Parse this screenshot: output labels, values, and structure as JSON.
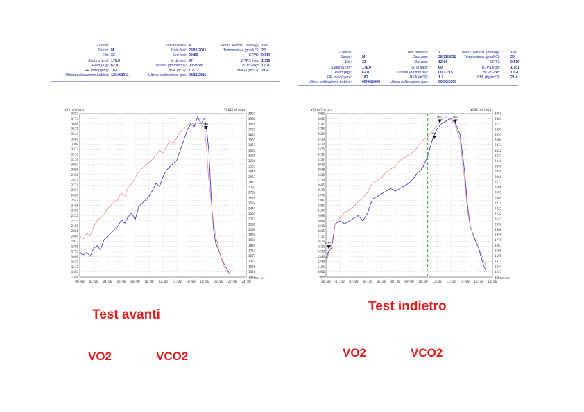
{
  "colors": {
    "vo2": "#2b2bc8",
    "vco2": "#e88a8a",
    "grid": "#c8c8c8",
    "marker": "#1fa01f",
    "caption": "#e01b1b",
    "header": "#1a2a9c"
  },
  "left": {
    "header": {
      "col1": [
        {
          "label": "Codice:",
          "value": "1"
        },
        {
          "label": "Sesso:",
          "value": "M"
        },
        {
          "label": "Età:",
          "value": "33"
        },
        {
          "label": "Statura (cm):",
          "value": "170.0"
        },
        {
          "label": "Peso (Kg):",
          "value": "62.0"
        },
        {
          "label": "HR max (bpm):",
          "value": "187"
        },
        {
          "label": "Ultima calibrazione turbina:",
          "value": "12/10/2011"
        }
      ],
      "col2": [
        {
          "label": "Test numero:",
          "value": "4"
        },
        {
          "label": "Data test:",
          "value": "28/11/2011"
        },
        {
          "label": "Ora test:",
          "value": "09:56"
        },
        {
          "label": "N. di step:",
          "value": "87"
        },
        {
          "label": "Durata (hh:mm:ss):",
          "value": "00:21:45"
        },
        {
          "label": "BSA (m^2):",
          "value": "1.7"
        },
        {
          "label": "Ultima calibrazione gas:",
          "value": "28/11/2011"
        }
      ],
      "col3": [
        {
          "label": "Press. Atmosf. (mmHg):",
          "value": "752"
        },
        {
          "label": "Temperatura (gradi C):",
          "value": "20"
        },
        {
          "label": "STPD:",
          "value": "0.816"
        },
        {
          "label": "BTPS insp:",
          "value": "1.115"
        },
        {
          "label": "BTPS exp:",
          "value": "1.020"
        },
        {
          "label": "BMI (Kg/m^2):",
          "value": "21.4"
        }
      ]
    },
    "caption": "Test avanti",
    "legend_vo2": "VO2",
    "legend_vco2": "VCO2"
  },
  "right": {
    "header": {
      "col1": [
        {
          "label": "Codice:",
          "value": "1"
        },
        {
          "label": "Sesso:",
          "value": "M"
        },
        {
          "label": "Età:",
          "value": "33"
        },
        {
          "label": "Statura (cm):",
          "value": "170.0"
        },
        {
          "label": "Peso (Kg):",
          "value": "62.0"
        },
        {
          "label": "HR max (bpm):",
          "value": "187"
        },
        {
          "label": "Ultima calibrazione turbina:",
          "value": "00/00/1990"
        }
      ],
      "col2": [
        {
          "label": "Test numero:",
          "value": "7"
        },
        {
          "label": "Data test:",
          "value": "28/11/2011"
        },
        {
          "label": "Ora test:",
          "value": "12:09"
        },
        {
          "label": "N. di step:",
          "value": "69"
        },
        {
          "label": "Durata (hh:mm:ss):",
          "value": "00:17:15"
        },
        {
          "label": "BSA (m^2):",
          "value": "1.7"
        },
        {
          "label": "Ultima calibrazione gas:",
          "value": "00/00/1990"
        }
      ],
      "col3": [
        {
          "label": "Press. Atmosf. (mmHg):",
          "value": "752"
        },
        {
          "label": "Temperatura (gradi C):",
          "value": "20"
        },
        {
          "label": "STPD:",
          "value": "0.816"
        },
        {
          "label": "BTPS insp:",
          "value": "1.101"
        },
        {
          "label": "BTPS exp:",
          "value": "1.020"
        },
        {
          "label": "BMI (Kg/m^2):",
          "value": "21.4"
        }
      ]
    },
    "caption": "Test indietro",
    "legend_vo2": "VO2",
    "legend_vco2": "VCO2"
  },
  "chart_data": [
    {
      "type": "line",
      "title": "",
      "ylabel_left": "VO2(ml/min)",
      "ylabel_right": "VCO2(ml/min)",
      "xlabel": "(hh:mm:ss)",
      "x_ticks": [
        "00:00",
        "02:00",
        "04:00",
        "06:00",
        "08:00",
        "10:00",
        "12:00",
        "14:00",
        "16:00",
        "18:00",
        "20:00",
        "22:00",
        "24:00"
      ],
      "y_left_ticks": [
        "3852",
        "3775",
        "3698",
        "3621",
        "3544",
        "3467",
        "3390",
        "3313",
        "3236",
        "3159",
        "3082",
        "3005",
        "2928",
        "2851",
        "2774",
        "2697",
        "2620",
        "2543",
        "2466",
        "2389",
        "2312",
        "2235",
        "2158",
        "2081",
        "2004",
        "1927",
        "1850",
        "1773",
        "1696",
        "1619",
        "1542",
        "1465",
        "1388"
      ],
      "y_right_ticks": [
        "3992",
        "3906",
        "3820",
        "3735",
        "3649",
        "3563",
        "3477",
        "3392",
        "3306",
        "3220",
        "3135",
        "3049",
        "2963",
        "2877",
        "2792",
        "2706",
        "2620",
        "2534",
        "2449",
        "2363",
        "2277",
        "2192",
        "2106",
        "2020",
        "1934",
        "1849",
        "1763",
        "1677",
        "1591",
        "1506",
        "1420",
        "1334"
      ],
      "xlim_min": [
        0,
        24
      ],
      "ylim_vo2": [
        1388,
        3852
      ],
      "ylim_vco2": [
        1334,
        3992
      ],
      "grid": true,
      "annotations": [
        {
          "label": "Max",
          "x_min": 18.2
        }
      ],
      "series": [
        {
          "name": "VO2",
          "x_min": [
            0,
            0.5,
            1,
            1.5,
            2,
            2.5,
            3,
            3.5,
            4,
            4.5,
            5,
            5.5,
            6,
            6.5,
            7,
            7.5,
            8,
            8.5,
            9,
            9.5,
            10,
            10.5,
            11,
            11.5,
            12,
            12.5,
            13,
            13.5,
            14,
            14.5,
            15,
            15.5,
            16,
            16.5,
            17,
            17.5,
            18,
            18.3,
            18.6,
            19,
            19.3,
            19.6,
            20,
            20.5,
            21,
            21.5,
            21.75
          ],
          "y": [
            1750,
            1720,
            1760,
            1700,
            1820,
            1860,
            1800,
            1950,
            2000,
            2050,
            2100,
            2150,
            2250,
            2200,
            2300,
            2350,
            2250,
            2450,
            2500,
            2550,
            2600,
            2700,
            2800,
            2750,
            2900,
            3000,
            3050,
            3100,
            3150,
            3300,
            3450,
            3600,
            3700,
            3650,
            3800,
            3700,
            3780,
            3600,
            3300,
            2500,
            2100,
            1900,
            1800,
            1650,
            1550,
            1450,
            1400
          ]
        },
        {
          "name": "VCO2",
          "x_min": [
            0,
            0.5,
            1,
            1.5,
            2,
            2.5,
            3,
            3.5,
            4,
            4.5,
            5,
            5.5,
            6,
            6.5,
            7,
            7.5,
            8,
            8.5,
            9,
            9.5,
            10,
            10.5,
            11,
            11.5,
            12,
            12.5,
            13,
            13.5,
            14,
            14.5,
            15,
            15.5,
            16,
            16.5,
            17,
            17.5,
            18,
            18.3,
            18.6,
            19,
            19.3,
            19.6,
            20,
            20.5,
            21,
            21.5,
            21.75
          ],
          "y": [
            2000,
            1950,
            2050,
            2000,
            2150,
            2250,
            2300,
            2350,
            2450,
            2500,
            2550,
            2600,
            2700,
            2650,
            2800,
            2850,
            2950,
            3050,
            3100,
            3150,
            3200,
            3250,
            3300,
            3400,
            3350,
            3450,
            3550,
            3500,
            3600,
            3700,
            3750,
            3800,
            3850,
            3820,
            3850,
            3800,
            3750,
            3400,
            2900,
            2500,
            2200,
            2000,
            1800,
            1600,
            1450,
            1400,
            1350
          ]
        }
      ]
    },
    {
      "type": "line",
      "title": "",
      "ylabel_left": "VO2(ml/min)",
      "ylabel_right": "VCO2(ml/min)",
      "xlabel": "(hh:mm:ss)",
      "x_ticks": [
        "00:00",
        "01:30",
        "03:00",
        "04:30",
        "06:00",
        "07:30",
        "09:00",
        "10:30",
        "12:00",
        "13:30",
        "15:00",
        "16:30",
        "18:00"
      ],
      "y_left_ticks": [
        "3986",
        "3892",
        "3797",
        "3703",
        "3609",
        "3514",
        "3420",
        "3325",
        "3231",
        "3137",
        "3042",
        "2948",
        "2853",
        "2759",
        "2665",
        "2570",
        "2476",
        "2381",
        "2287",
        "2193",
        "2098",
        "2004",
        "1910",
        "1815",
        "1721",
        "1626",
        "1532",
        "1438",
        "1343",
        "1249",
        "1155",
        "1060",
        "966"
      ],
      "y_right_ticks": [
        "3958",
        "3867",
        "3775",
        "3685",
        "3595",
        "3504",
        "3413",
        "3322",
        "3231",
        "3140",
        "3050",
        "2959",
        "2868",
        "2777",
        "2686",
        "2595",
        "2505",
        "2414",
        "2323",
        "2232",
        "2141",
        "2050",
        "1960",
        "1869",
        "1778",
        "1687",
        "1596",
        "1505",
        "1415",
        "1324",
        "1233",
        "1142"
      ],
      "xlim_min": [
        0,
        18
      ],
      "ylim_vo2": [
        966,
        3986
      ],
      "ylim_vco2": [
        1142,
        3958
      ],
      "grid": true,
      "annotations": [
        {
          "label": "Start",
          "x_min": 0.3
        },
        {
          "label": "Max",
          "x_min": 11.7
        },
        {
          "label": "Max",
          "x_min": 12.3
        },
        {
          "label": "Max",
          "x_min": 14.0
        }
      ],
      "marker_line_x_min": 11.0,
      "series": [
        {
          "name": "VO2",
          "x_min": [
            0,
            0.3,
            0.6,
            1,
            1.5,
            2,
            2.5,
            3,
            3.5,
            4,
            4.5,
            5,
            5.5,
            6,
            6.5,
            7,
            7.5,
            8,
            8.5,
            9,
            9.5,
            10,
            10.5,
            11,
            11.5,
            12,
            12.5,
            13,
            13.5,
            14,
            14.5,
            15,
            15.3,
            15.6,
            16,
            16.5,
            17,
            17.25
          ],
          "y": [
            1300,
            1450,
            1500,
            1950,
            2000,
            1950,
            2000,
            2050,
            2100,
            2000,
            2150,
            2400,
            2450,
            2500,
            2550,
            2600,
            2550,
            2600,
            2650,
            2700,
            2800,
            2900,
            3000,
            3200,
            3500,
            3700,
            3800,
            3850,
            3900,
            3800,
            3600,
            2900,
            2300,
            1900,
            1700,
            1500,
            1200,
            1100
          ]
        },
        {
          "name": "VCO2",
          "x_min": [
            0,
            0.3,
            0.6,
            1,
            1.5,
            2,
            2.5,
            3,
            3.5,
            4,
            4.5,
            5,
            5.5,
            6,
            6.5,
            7,
            7.5,
            8,
            8.5,
            9,
            9.5,
            10,
            10.5,
            11,
            11.5,
            12,
            12.5,
            13,
            13.5,
            14,
            14.5,
            15,
            15.3,
            15.6,
            16,
            16.5,
            17,
            17.25
          ],
          "y": [
            1400,
            1550,
            1700,
            2050,
            2150,
            2250,
            2300,
            2350,
            2450,
            2500,
            2600,
            2750,
            2800,
            2850,
            2950,
            3000,
            3050,
            3150,
            3200,
            3250,
            3300,
            3400,
            3500,
            3550,
            3650,
            3750,
            3850,
            3900,
            3850,
            3750,
            3500,
            2800,
            2300,
            2000,
            1850,
            1650,
            1450,
            1350
          ]
        }
      ]
    }
  ]
}
